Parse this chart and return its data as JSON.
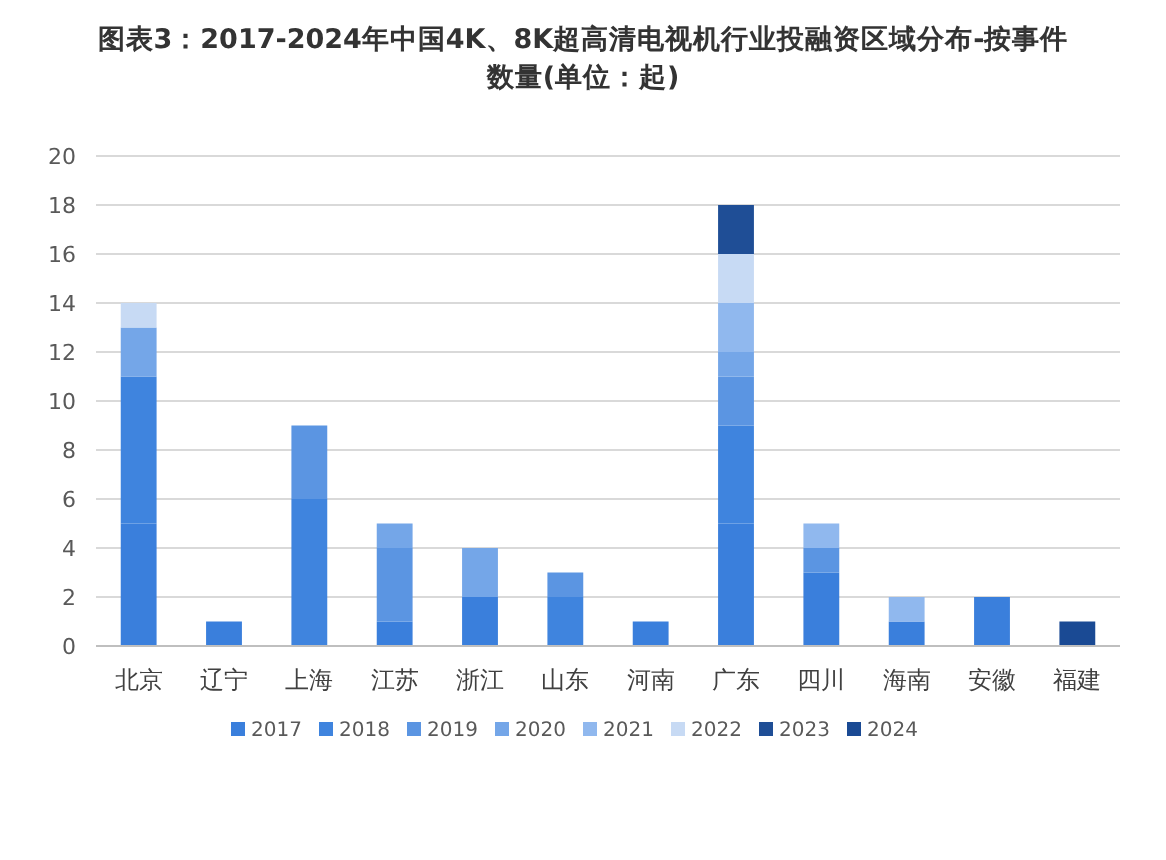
{
  "chart_data": {
    "type": "bar",
    "stacked": true,
    "title": "图表3：2017-2024年中国4K、8K超高清电视机行业投融资区域分布-按事件数量(单位：起)",
    "categories": [
      "北京",
      "辽宁",
      "上海",
      "江苏",
      "浙江",
      "山东",
      "河南",
      "广东",
      "四川",
      "海南",
      "安徽",
      "福建"
    ],
    "series": [
      {
        "name": "2017",
        "color": "#3a7fdc",
        "values": [
          5,
          1,
          0,
          1,
          2,
          0,
          1,
          5,
          3,
          1,
          2,
          0
        ]
      },
      {
        "name": "2018",
        "color": "#3f84de",
        "values": [
          6,
          0,
          6,
          0,
          0,
          2,
          0,
          4,
          0,
          0,
          0,
          0
        ]
      },
      {
        "name": "2019",
        "color": "#5b95e2",
        "values": [
          0,
          0,
          3,
          3,
          0,
          1,
          0,
          2,
          1,
          0,
          0,
          0
        ]
      },
      {
        "name": "2020",
        "color": "#74a6e8",
        "values": [
          2,
          0,
          0,
          1,
          2,
          0,
          0,
          1,
          0,
          0,
          0,
          0
        ]
      },
      {
        "name": "2021",
        "color": "#90b8ee",
        "values": [
          0,
          0,
          0,
          0,
          0,
          0,
          0,
          2,
          1,
          1,
          0,
          0
        ]
      },
      {
        "name": "2022",
        "color": "#c7daf4",
        "values": [
          1,
          0,
          0,
          0,
          0,
          0,
          0,
          2,
          0,
          0,
          0,
          0
        ]
      },
      {
        "name": "2023",
        "color": "#1f4e96",
        "values": [
          0,
          0,
          0,
          0,
          0,
          0,
          0,
          2,
          0,
          0,
          0,
          0
        ]
      },
      {
        "name": "2024",
        "color": "#1a4a94",
        "values": [
          0,
          0,
          0,
          0,
          0,
          0,
          0,
          0,
          0,
          0,
          0,
          1
        ]
      }
    ],
    "ylim": [
      0,
      20
    ],
    "yticks": [
      0,
      2,
      4,
      6,
      8,
      10,
      12,
      14,
      16,
      18,
      20
    ],
    "grid": "y",
    "legend": "bottom"
  }
}
